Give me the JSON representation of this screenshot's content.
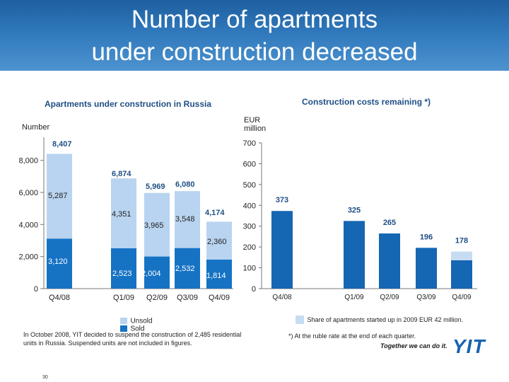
{
  "header": {
    "title_line1": "Number of apartments",
    "title_line2": "under construction decreased"
  },
  "colors": {
    "unsold": "#b9d4f0",
    "sold": "#1673c4",
    "bar2_light": "#c6dcf2",
    "bar2_dark": "#1566b3",
    "label_blue": "#1f4f85"
  },
  "chart_data": [
    {
      "type": "bar",
      "title": "Apartments under construction in Russia",
      "ylabel": "Number",
      "categories": [
        "Q4/08",
        "Q1/09",
        "Q2/09",
        "Q3/09",
        "Q4/09"
      ],
      "ylim": [
        0,
        9000
      ],
      "yticks": [
        "0",
        "2,000",
        "4,000",
        "6,000",
        "8,000"
      ],
      "series": [
        {
          "name": "Sold",
          "values": [
            3120,
            2523,
            2004,
            2532,
            1814
          ],
          "labels": [
            "3,120",
            "2,523",
            "2,004",
            "2,532",
            "1,814"
          ]
        },
        {
          "name": "Unsold",
          "values": [
            5287,
            4351,
            3965,
            3548,
            2360
          ],
          "labels": [
            "5,287",
            "4,351",
            "3,965",
            "3,548",
            "2,360"
          ]
        }
      ],
      "totals": [
        8407,
        6874,
        5969,
        6080,
        4174
      ],
      "total_labels": [
        "8,407",
        "6,874",
        "5,969",
        "6,080",
        "4,174"
      ],
      "legend": [
        "Unsold",
        "Sold"
      ]
    },
    {
      "type": "bar",
      "title": "Construction costs remaining *)",
      "ylabel": "EUR million",
      "categories": [
        "Q4/08",
        "Q1/09",
        "Q2/09",
        "Q3/09",
        "Q4/09"
      ],
      "ylim": [
        0,
        700
      ],
      "yticks": [
        "0",
        "100",
        "200",
        "300",
        "400",
        "500",
        "600",
        "700"
      ],
      "values": [
        373,
        325,
        265,
        196,
        178
      ],
      "labels": [
        "373",
        "325",
        "265",
        "196",
        "178"
      ],
      "last_bar_dark_portion": 136,
      "legend": [
        "Share of apartments started up in 2009 EUR 42 million."
      ]
    }
  ],
  "notes": {
    "left": "In October 2008, YIT decided to suspend the construction of 2,485 residential units in Russia. Suspended units are not included in figures.",
    "right": "*) At the ruble rate at the end of each quarter."
  },
  "brand": {
    "slogan": "Together we can do it.",
    "logo": "YIT"
  },
  "page_number": "30"
}
